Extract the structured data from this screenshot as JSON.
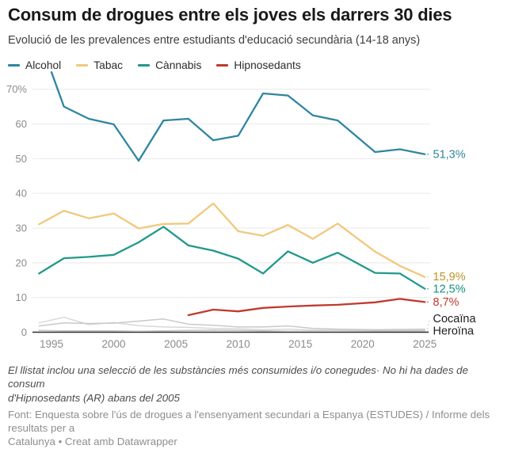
{
  "header": {
    "title": "Consum de drogues entre els joves els darrers 30 dies",
    "subtitle": "Evolució de les prevalences entre estudiants d'educació secundària (14-18 anys)"
  },
  "legend": {
    "items": [
      {
        "label": "Alcohol",
        "color": "#2e86a0"
      },
      {
        "label": "Tabac",
        "color": "#f1c87c"
      },
      {
        "label": "Cànnabis",
        "color": "#21998a"
      },
      {
        "label": "Hipnosedants",
        "color": "#c03a2f"
      }
    ]
  },
  "chart_data": {
    "type": "line",
    "unit": "%",
    "grid": "horizontal",
    "xlim": [
      1994,
      2025
    ],
    "ylim": [
      0,
      75
    ],
    "x_ticks": [
      1995,
      2000,
      2005,
      2010,
      2015,
      2020,
      2025
    ],
    "y_ticks": [
      0,
      10,
      20,
      30,
      40,
      50,
      60,
      70
    ],
    "y_tick_labels": [
      "0",
      "10",
      "20",
      "30",
      "40",
      "50",
      "60",
      "70%"
    ],
    "axis_text_color": "#8b8b8b",
    "gridline_color": "#e9e9e9",
    "baseline_color": "#2e2e2e",
    "series": [
      {
        "name": "",
        "color": "#d8d8d8",
        "width": 1.5,
        "points": [
          [
            1994,
            2.7
          ],
          [
            1996,
            4.3
          ],
          [
            1998,
            2.2
          ],
          [
            2000,
            2.8
          ],
          [
            2002,
            1.9
          ],
          [
            2004,
            1.5
          ],
          [
            2006,
            1.4
          ],
          [
            2008,
            1.1
          ],
          [
            2010,
            1.0
          ],
          [
            2012,
            0.7
          ],
          [
            2014,
            0.9
          ],
          [
            2016,
            0.6
          ],
          [
            2018,
            0.6
          ],
          [
            2021,
            0.5
          ],
          [
            2023,
            0.5
          ],
          [
            2025,
            0.5
          ]
        ]
      },
      {
        "name": "Heroïna",
        "color": "#c4c4c4",
        "width": 1.5,
        "end_label": "Heroïna",
        "label_color": "#1d1d1d",
        "points": [
          [
            1994,
            0.5
          ],
          [
            1996,
            0.4
          ],
          [
            1998,
            0.4
          ],
          [
            2000,
            0.4
          ],
          [
            2002,
            0.3
          ],
          [
            2004,
            0.4
          ],
          [
            2006,
            0.5
          ],
          [
            2008,
            0.6
          ],
          [
            2010,
            0.5
          ],
          [
            2012,
            0.4
          ],
          [
            2014,
            0.3
          ],
          [
            2016,
            0.3
          ],
          [
            2018,
            0.3
          ],
          [
            2021,
            0.4
          ],
          [
            2023,
            0.4
          ],
          [
            2025,
            0.4
          ]
        ]
      },
      {
        "name": "Cocaïna",
        "color": "#c9c9c9",
        "width": 1.5,
        "end_label": "Cocaïna",
        "label_color": "#1d1d1d",
        "points": [
          [
            1994,
            1.8
          ],
          [
            1996,
            2.7
          ],
          [
            1998,
            2.5
          ],
          [
            2000,
            2.6
          ],
          [
            2002,
            3.2
          ],
          [
            2004,
            3.8
          ],
          [
            2006,
            2.3
          ],
          [
            2008,
            2.0
          ],
          [
            2010,
            1.5
          ],
          [
            2012,
            1.5
          ],
          [
            2014,
            1.8
          ],
          [
            2016,
            1.1
          ],
          [
            2018,
            0.9
          ],
          [
            2021,
            0.7
          ],
          [
            2023,
            0.8
          ],
          [
            2025,
            0.9
          ]
        ]
      },
      {
        "name": "Tabac",
        "color": "#f1c87c",
        "width": 2.3,
        "end_label": "15,9%",
        "label_color": "#bd9425",
        "points": [
          [
            1994,
            31.1
          ],
          [
            1996,
            35.0
          ],
          [
            1998,
            32.8
          ],
          [
            2000,
            34.2
          ],
          [
            2002,
            29.9
          ],
          [
            2004,
            31.2
          ],
          [
            2006,
            31.3
          ],
          [
            2008,
            37.1
          ],
          [
            2010,
            29.1
          ],
          [
            2012,
            27.8
          ],
          [
            2014,
            30.9
          ],
          [
            2016,
            26.9
          ],
          [
            2018,
            31.3
          ],
          [
            2021,
            23.2
          ],
          [
            2023,
            19.1
          ],
          [
            2025,
            15.9
          ]
        ]
      },
      {
        "name": "Cànnabis",
        "color": "#21998a",
        "width": 2.3,
        "end_label": "12,5%",
        "label_color": "#13917f",
        "points": [
          [
            1994,
            16.9
          ],
          [
            1996,
            21.3
          ],
          [
            1998,
            21.7
          ],
          [
            2000,
            22.3
          ],
          [
            2002,
            25.9
          ],
          [
            2004,
            30.4
          ],
          [
            2006,
            25.0
          ],
          [
            2008,
            23.5
          ],
          [
            2010,
            21.2
          ],
          [
            2012,
            16.9
          ],
          [
            2014,
            23.3
          ],
          [
            2016,
            20.0
          ],
          [
            2018,
            22.9
          ],
          [
            2021,
            17.1
          ],
          [
            2023,
            16.9
          ],
          [
            2025,
            12.5
          ]
        ]
      },
      {
        "name": "Alcohol",
        "color": "#2e86a0",
        "width": 2.3,
        "end_label": "51,3%",
        "label_color": "#2e86a0",
        "points": [
          [
            1995,
            74.9
          ],
          [
            1996,
            65.0
          ],
          [
            1998,
            61.5
          ],
          [
            2000,
            59.9
          ],
          [
            2002,
            49.4
          ],
          [
            2004,
            61.0
          ],
          [
            2006,
            61.5
          ],
          [
            2008,
            55.3
          ],
          [
            2010,
            56.6
          ],
          [
            2012,
            68.8
          ],
          [
            2014,
            68.2
          ],
          [
            2016,
            62.5
          ],
          [
            2018,
            61.0
          ],
          [
            2021,
            51.9
          ],
          [
            2023,
            52.7
          ],
          [
            2025,
            51.3
          ]
        ]
      },
      {
        "name": "Hipnosedants",
        "color": "#c03a2f",
        "width": 2.3,
        "end_label": "8,7%",
        "label_color": "#c03a2f",
        "points": [
          [
            2006,
            4.9
          ],
          [
            2008,
            6.5
          ],
          [
            2010,
            6.0
          ],
          [
            2012,
            7.0
          ],
          [
            2014,
            7.4
          ],
          [
            2016,
            7.7
          ],
          [
            2018,
            7.9
          ],
          [
            2021,
            8.6
          ],
          [
            2023,
            9.6
          ],
          [
            2025,
            8.7
          ]
        ]
      }
    ]
  },
  "footer": {
    "note": "El llistat inclou una selecció de les substàncies més consumides i/o conegudes· No hi ha dades de consum\nd'Hipnosedants (AR) abans del 2005",
    "source": "Font: Enquesta sobre l'ús de drogues a l'ensenyament secundari a Espanya (ESTUDES) / Informe dels resultats per a\nCatalunya • Creat amb Datawrapper"
  }
}
